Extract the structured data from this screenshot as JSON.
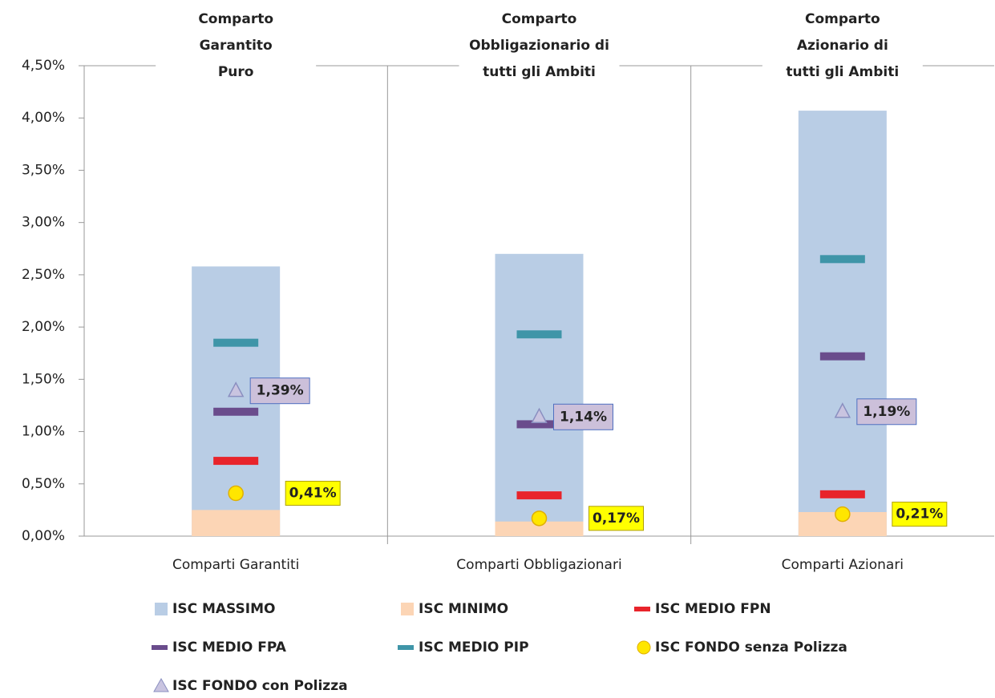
{
  "chart_data": {
    "type": "bar",
    "annotations": [
      [
        "Comparto",
        "Garantito",
        "Puro"
      ],
      [
        "Comparto",
        "Obbligazionario di",
        "tutti gli Ambiti"
      ],
      [
        "Comparto",
        "Azionario di",
        "tutti gli Ambiti"
      ]
    ],
    "categories": [
      "Comparti Garantiti",
      "Comparti Obbligazionari",
      "Comparti Azionari"
    ],
    "ylim": [
      0,
      4.5
    ],
    "yticks": [
      {
        "value": 0,
        "label": "0,00%"
      },
      {
        "value": 0.5,
        "label": "0,50%"
      },
      {
        "value": 1,
        "label": "1,00%"
      },
      {
        "value": 1.5,
        "label": "1,50%"
      },
      {
        "value": 2,
        "label": "2,00%"
      },
      {
        "value": 2.5,
        "label": "2,50%"
      },
      {
        "value": 3,
        "label": "3,00%"
      },
      {
        "value": 3.5,
        "label": "3,50%"
      },
      {
        "value": 4,
        "label": "4,00%"
      },
      {
        "value": 4.5,
        "label": "4,50%"
      }
    ],
    "series": [
      {
        "name": "ISC MASSIMO",
        "marker": "bar",
        "color": "#b9cde5",
        "values": [
          2.58,
          2.7,
          4.07
        ]
      },
      {
        "name": "ISC MINIMO",
        "marker": "bar",
        "color": "#fcd5b5",
        "values": [
          0.25,
          0.14,
          0.23
        ]
      },
      {
        "name": "ISC MEDIO FPN",
        "marker": "dash",
        "color": "#e8242b",
        "values": [
          0.72,
          0.39,
          0.4
        ]
      },
      {
        "name": "ISC MEDIO FPA",
        "marker": "dash",
        "color": "#6a4c8c",
        "values": [
          1.19,
          1.07,
          1.72
        ]
      },
      {
        "name": "ISC MEDIO PIP",
        "marker": "dash",
        "color": "#3f95a8",
        "values": [
          1.85,
          1.93,
          2.65
        ]
      },
      {
        "name": "ISC FONDO senza Polizza",
        "marker": "circle",
        "color": "#ffe600",
        "values": [
          0.41,
          0.17,
          0.21
        ],
        "value_labels": [
          "0,41%",
          "0,17%",
          "0,21%"
        ]
      },
      {
        "name": "ISC FONDO con Polizza",
        "marker": "triangle",
        "color": "#c9c4e0",
        "values": [
          1.39,
          1.14,
          1.19
        ],
        "value_labels": [
          "1,39%",
          "1,14%",
          "1,19%"
        ]
      }
    ]
  }
}
